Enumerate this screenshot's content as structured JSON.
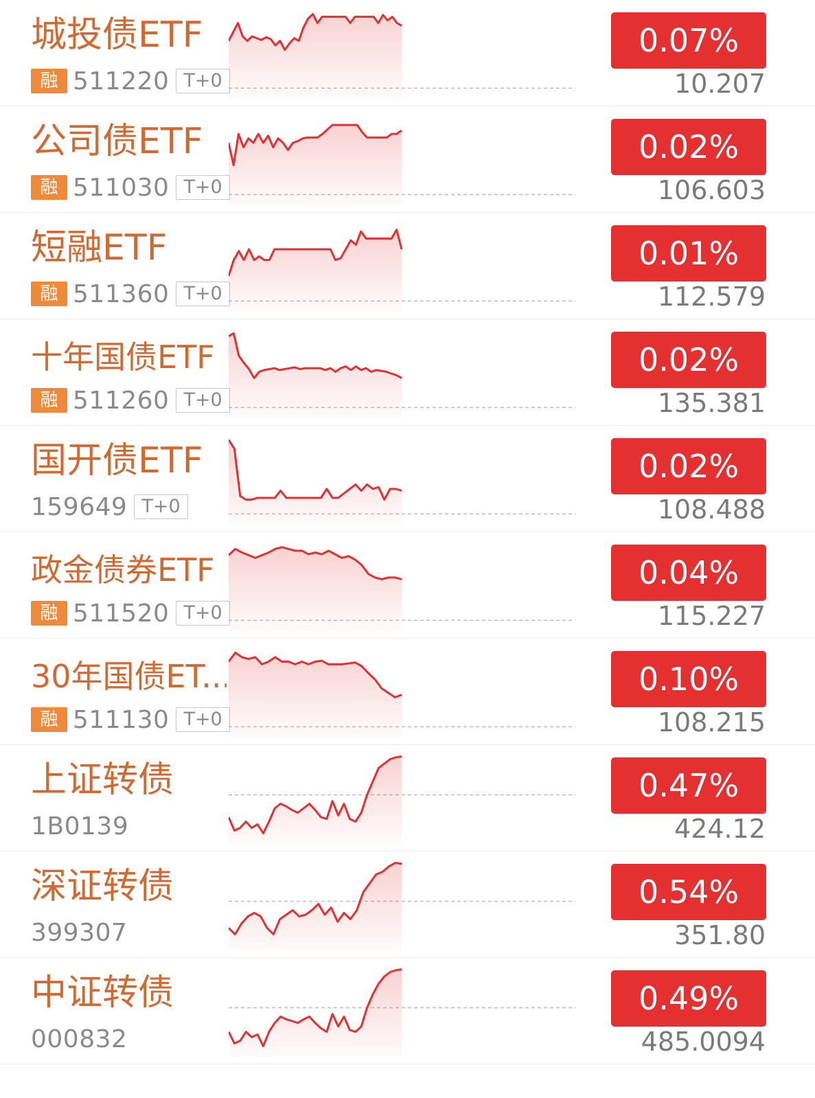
{
  "colors": {
    "name": "#d06a32",
    "up_badge": "#e43030",
    "line": "#e43030",
    "rong_badge": "#ef8a3a",
    "muted_text": "#8a8a8a"
  },
  "items": [
    {
      "name": "城投债ETF",
      "rong": "融",
      "code": "511220",
      "tag": "T+0",
      "change": "0.07%",
      "price": "10.207",
      "spark": {
        "baseline": 0.88,
        "points": [
          0.35,
          0.25,
          0.15,
          0.3,
          0.35,
          0.3,
          0.32,
          0.34,
          0.31,
          0.33,
          0.4,
          0.35,
          0.45,
          0.38,
          0.32,
          0.35,
          0.2,
          0.1,
          0.05,
          0.15,
          0.08,
          0.08,
          0.08,
          0.08,
          0.08,
          0.08,
          0.15,
          0.08,
          0.08,
          0.08,
          0.08,
          0.08,
          0.15,
          0.06,
          0.12,
          0.08,
          0.15,
          0.18
        ]
      }
    },
    {
      "name": "公司债ETF",
      "rong": "融",
      "code": "511030",
      "tag": "T+0",
      "change": "0.02%",
      "price": "106.603",
      "spark": {
        "baseline": 0.88,
        "points": [
          0.3,
          0.55,
          0.2,
          0.35,
          0.25,
          0.3,
          0.2,
          0.3,
          0.22,
          0.35,
          0.25,
          0.3,
          0.38,
          0.3,
          0.28,
          0.25,
          0.24,
          0.24,
          0.24,
          0.2,
          0.15,
          0.1,
          0.1,
          0.1,
          0.1,
          0.1,
          0.1,
          0.18,
          0.24,
          0.24,
          0.24,
          0.24,
          0.24,
          0.2,
          0.2,
          0.16
        ]
      }
    },
    {
      "name": "短融ETF",
      "rong": "融",
      "code": "511360",
      "tag": "T+0",
      "change": "0.01%",
      "price": "112.579",
      "spark": {
        "baseline": 0.88,
        "points": [
          0.6,
          0.42,
          0.32,
          0.42,
          0.3,
          0.42,
          0.38,
          0.42,
          0.42,
          0.3,
          0.3,
          0.3,
          0.3,
          0.3,
          0.3,
          0.3,
          0.3,
          0.3,
          0.3,
          0.3,
          0.3,
          0.42,
          0.4,
          0.3,
          0.2,
          0.25,
          0.1,
          0.18,
          0.18,
          0.18,
          0.18,
          0.18,
          0.18,
          0.08,
          0.3
        ]
      }
    },
    {
      "name": "十年国债ETF",
      "rong": "融",
      "code": "511260",
      "tag": "T+0",
      "change": "0.02%",
      "price": "135.381",
      "spark": {
        "baseline": 0.88,
        "points": [
          0.08,
          0.05,
          0.3,
          0.38,
          0.45,
          0.55,
          0.48,
          0.46,
          0.45,
          0.44,
          0.46,
          0.45,
          0.44,
          0.43,
          0.45,
          0.44,
          0.44,
          0.44,
          0.44,
          0.46,
          0.44,
          0.48,
          0.44,
          0.42,
          0.46,
          0.42,
          0.46,
          0.44,
          0.48,
          0.46,
          0.47,
          0.48,
          0.5,
          0.52,
          0.55
        ]
      }
    },
    {
      "name": "国开债ETF",
      "rong": "",
      "code": "159649",
      "tag": "T+0",
      "change": "0.02%",
      "price": "108.488",
      "spark": {
        "baseline": 0.88,
        "points": [
          0.05,
          0.15,
          0.68,
          0.72,
          0.72,
          0.7,
          0.7,
          0.7,
          0.7,
          0.62,
          0.7,
          0.7,
          0.7,
          0.7,
          0.7,
          0.7,
          0.7,
          0.6,
          0.7,
          0.7,
          0.65,
          0.6,
          0.55,
          0.62,
          0.55,
          0.6,
          0.58,
          0.72,
          0.6,
          0.6,
          0.62
        ]
      }
    },
    {
      "name": "政金债券ETF",
      "rong": "融",
      "code": "511520",
      "tag": "T+0",
      "change": "0.04%",
      "price": "115.227",
      "spark": {
        "baseline": 0.88,
        "points": [
          0.15,
          0.08,
          0.12,
          0.15,
          0.18,
          0.15,
          0.12,
          0.08,
          0.06,
          0.08,
          0.1,
          0.1,
          0.14,
          0.12,
          0.14,
          0.1,
          0.14,
          0.18,
          0.16,
          0.2,
          0.26,
          0.36,
          0.4,
          0.42,
          0.4,
          0.4,
          0.42
        ]
      }
    },
    {
      "name": "30年国债ET...",
      "rong": "融",
      "code": "511130",
      "tag": "T+0",
      "change": "0.10%",
      "price": "108.215",
      "spark": {
        "baseline": 0.88,
        "points": [
          0.15,
          0.05,
          0.1,
          0.12,
          0.1,
          0.18,
          0.15,
          0.1,
          0.15,
          0.15,
          0.18,
          0.15,
          0.18,
          0.15,
          0.14,
          0.18,
          0.18,
          0.18,
          0.17,
          0.16,
          0.2,
          0.28,
          0.35,
          0.45,
          0.5,
          0.55,
          0.52
        ]
      }
    },
    {
      "name": "上证转债",
      "rong": "",
      "code": "1B0139",
      "tag": "",
      "change": "0.47%",
      "price": "424.12",
      "spark": {
        "baseline": 0.45,
        "points": [
          0.7,
          0.85,
          0.82,
          0.75,
          0.82,
          0.78,
          0.88,
          0.75,
          0.6,
          0.55,
          0.58,
          0.62,
          0.65,
          0.6,
          0.55,
          0.62,
          0.7,
          0.72,
          0.52,
          0.68,
          0.55,
          0.72,
          0.75,
          0.65,
          0.45,
          0.3,
          0.15,
          0.1,
          0.05,
          0.03,
          0.02
        ]
      }
    },
    {
      "name": "深证转债",
      "rong": "",
      "code": "399307",
      "tag": "",
      "change": "0.54%",
      "price": "351.80",
      "spark": {
        "baseline": 0.45,
        "points": [
          0.75,
          0.82,
          0.7,
          0.62,
          0.58,
          0.62,
          0.75,
          0.82,
          0.65,
          0.6,
          0.55,
          0.62,
          0.6,
          0.55,
          0.48,
          0.6,
          0.52,
          0.68,
          0.58,
          0.65,
          0.55,
          0.35,
          0.25,
          0.15,
          0.12,
          0.06,
          0.02,
          0.03
        ]
      }
    },
    {
      "name": "中证转债",
      "rong": "",
      "code": "000832",
      "tag": "",
      "change": "0.49%",
      "price": "485.0094",
      "spark": {
        "baseline": 0.45,
        "points": [
          0.72,
          0.85,
          0.82,
          0.72,
          0.78,
          0.75,
          0.88,
          0.72,
          0.62,
          0.55,
          0.58,
          0.6,
          0.62,
          0.58,
          0.55,
          0.62,
          0.68,
          0.72,
          0.52,
          0.66,
          0.55,
          0.7,
          0.72,
          0.66,
          0.45,
          0.3,
          0.18,
          0.1,
          0.05,
          0.03,
          0.02
        ]
      }
    }
  ]
}
